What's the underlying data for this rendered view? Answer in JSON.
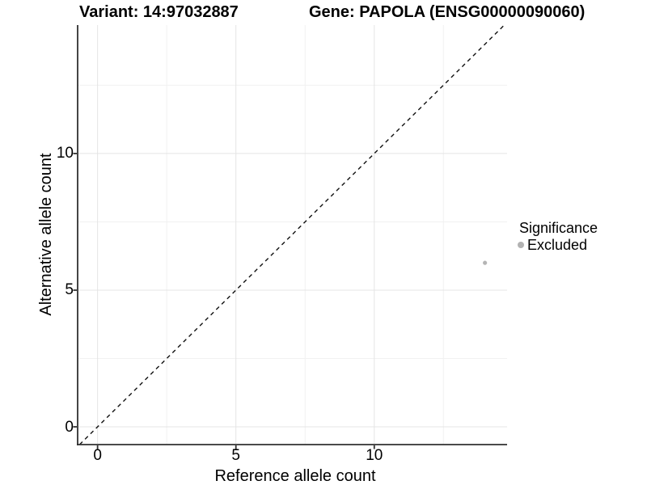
{
  "chart_data": {
    "type": "scatter",
    "title_variant": "Variant: 14:97032887",
    "title_gene": "Gene: PAPOLA (ENSG00000090060)",
    "xlabel": "Reference allele count",
    "ylabel": "Alternative allele count",
    "xlim": [
      -0.72,
      14.8
    ],
    "ylim": [
      -0.65,
      14.7
    ],
    "x_ticks": [
      0,
      5,
      10
    ],
    "y_ticks": [
      0,
      5,
      10
    ],
    "x_minor": [
      2.5,
      7.5,
      12.5
    ],
    "y_minor": [
      2.5,
      7.5,
      12.5
    ],
    "grid": true,
    "points": [
      {
        "x": 14,
        "y": 6,
        "significance": "Excluded"
      }
    ],
    "reference_line": {
      "kind": "identity y = x",
      "style": "dashed"
    },
    "legend": {
      "title": "Significance",
      "position": "right",
      "items": [
        {
          "label": "Excluded",
          "color": "#b2b2b2"
        }
      ]
    },
    "colors": {
      "point": "#b5b5b5",
      "grid_major": "#e4e4e4",
      "grid_minor": "#f1f1f1",
      "axis": "#303030",
      "dashed_line": "#111111",
      "text": "#000000"
    }
  }
}
